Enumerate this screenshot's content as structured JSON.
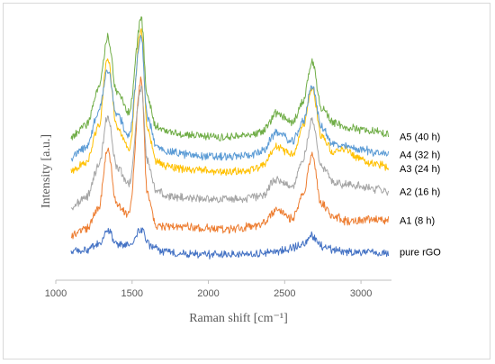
{
  "chart_data": {
    "type": "line",
    "title": "",
    "xlabel": "Raman shift [cm⁻¹]",
    "ylabel": "Intensity [a.u.]",
    "xlim": [
      1000,
      3200
    ],
    "ylim": [
      0,
      1
    ],
    "x_ticks": [
      "1000",
      "1500",
      "2000",
      "2500",
      "3000"
    ],
    "grid": false,
    "legend": "inline-right",
    "series": [
      {
        "name": "pure rGO",
        "color": "#4472c4",
        "points": [
          [
            1100,
            0.056
          ],
          [
            1200,
            0.062
          ],
          [
            1280,
            0.085
          ],
          [
            1340,
            0.14
          ],
          [
            1400,
            0.09
          ],
          [
            1480,
            0.08
          ],
          [
            1560,
            0.145
          ],
          [
            1620,
            0.08
          ],
          [
            1700,
            0.058
          ],
          [
            1800,
            0.05
          ],
          [
            1900,
            0.048
          ],
          [
            2000,
            0.046
          ],
          [
            2100,
            0.046
          ],
          [
            2200,
            0.046
          ],
          [
            2300,
            0.048
          ],
          [
            2400,
            0.056
          ],
          [
            2500,
            0.061
          ],
          [
            2600,
            0.082
          ],
          [
            2680,
            0.12
          ],
          [
            2750,
            0.078
          ],
          [
            2850,
            0.06
          ],
          [
            2950,
            0.056
          ],
          [
            3050,
            0.052
          ],
          [
            3180,
            0.05
          ]
        ]
      },
      {
        "name": "A1 (8 h)",
        "color": "#ed7d31",
        "points": [
          [
            1100,
            0.125
          ],
          [
            1200,
            0.148
          ],
          [
            1280,
            0.23
          ],
          [
            1340,
            0.47
          ],
          [
            1400,
            0.25
          ],
          [
            1480,
            0.21
          ],
          [
            1560,
            0.76
          ],
          [
            1600,
            0.29
          ],
          [
            1660,
            0.16
          ],
          [
            1750,
            0.16
          ],
          [
            1850,
            0.16
          ],
          [
            1950,
            0.15
          ],
          [
            2050,
            0.15
          ],
          [
            2150,
            0.15
          ],
          [
            2250,
            0.156
          ],
          [
            2350,
            0.168
          ],
          [
            2450,
            0.225
          ],
          [
            2550,
            0.19
          ],
          [
            2620,
            0.28
          ],
          [
            2680,
            0.45
          ],
          [
            2740,
            0.25
          ],
          [
            2820,
            0.2
          ],
          [
            2900,
            0.18
          ],
          [
            3000,
            0.186
          ],
          [
            3100,
            0.186
          ],
          [
            3180,
            0.184
          ]
        ]
      },
      {
        "name": "A2 (16 h)",
        "color": "#a5a5a5",
        "points": [
          [
            1100,
            0.232
          ],
          [
            1200,
            0.278
          ],
          [
            1280,
            0.4
          ],
          [
            1340,
            0.6
          ],
          [
            1400,
            0.4
          ],
          [
            1480,
            0.33
          ],
          [
            1560,
            0.72
          ],
          [
            1600,
            0.42
          ],
          [
            1660,
            0.3
          ],
          [
            1750,
            0.28
          ],
          [
            1850,
            0.275
          ],
          [
            1950,
            0.27
          ],
          [
            2050,
            0.27
          ],
          [
            2150,
            0.27
          ],
          [
            2250,
            0.272
          ],
          [
            2350,
            0.284
          ],
          [
            2450,
            0.35
          ],
          [
            2550,
            0.32
          ],
          [
            2620,
            0.43
          ],
          [
            2680,
            0.59
          ],
          [
            2740,
            0.4
          ],
          [
            2820,
            0.34
          ],
          [
            2900,
            0.33
          ],
          [
            3000,
            0.32
          ],
          [
            3100,
            0.31
          ],
          [
            3180,
            0.3
          ]
        ]
      },
      {
        "name": "A3 (24 h)",
        "color": "#ffc000",
        "points": [
          [
            1100,
            0.38
          ],
          [
            1200,
            0.42
          ],
          [
            1280,
            0.56
          ],
          [
            1340,
            0.84
          ],
          [
            1400,
            0.56
          ],
          [
            1480,
            0.47
          ],
          [
            1560,
            0.96
          ],
          [
            1600,
            0.55
          ],
          [
            1660,
            0.42
          ],
          [
            1750,
            0.4
          ],
          [
            1850,
            0.39
          ],
          [
            1950,
            0.385
          ],
          [
            2050,
            0.38
          ],
          [
            2150,
            0.38
          ],
          [
            2250,
            0.385
          ],
          [
            2350,
            0.4
          ],
          [
            2450,
            0.48
          ],
          [
            2550,
            0.45
          ],
          [
            2620,
            0.56
          ],
          [
            2680,
            0.72
          ],
          [
            2740,
            0.53
          ],
          [
            2820,
            0.46
          ],
          [
            2900,
            0.47
          ],
          [
            3000,
            0.43
          ],
          [
            3100,
            0.41
          ],
          [
            3180,
            0.4
          ]
        ]
      },
      {
        "name": "A4 (32 h)",
        "color": "#5b9bd5",
        "points": [
          [
            1100,
            0.44
          ],
          [
            1200,
            0.476
          ],
          [
            1280,
            0.62
          ],
          [
            1340,
            0.79
          ],
          [
            1400,
            0.61
          ],
          [
            1480,
            0.53
          ],
          [
            1560,
            0.92
          ],
          [
            1600,
            0.6
          ],
          [
            1660,
            0.48
          ],
          [
            1750,
            0.46
          ],
          [
            1850,
            0.45
          ],
          [
            1950,
            0.444
          ],
          [
            2050,
            0.44
          ],
          [
            2150,
            0.44
          ],
          [
            2250,
            0.446
          ],
          [
            2350,
            0.46
          ],
          [
            2450,
            0.54
          ],
          [
            2550,
            0.5
          ],
          [
            2620,
            0.58
          ],
          [
            2680,
            0.73
          ],
          [
            2740,
            0.56
          ],
          [
            2820,
            0.49
          ],
          [
            2900,
            0.48
          ],
          [
            3000,
            0.47
          ],
          [
            3100,
            0.458
          ],
          [
            3180,
            0.45
          ]
        ]
      },
      {
        "name": "A5 (40 h)",
        "color": "#70ad47",
        "points": [
          [
            1100,
            0.52
          ],
          [
            1200,
            0.57
          ],
          [
            1280,
            0.72
          ],
          [
            1340,
            0.92
          ],
          [
            1400,
            0.7
          ],
          [
            1480,
            0.62
          ],
          [
            1560,
            1.0
          ],
          [
            1600,
            0.68
          ],
          [
            1660,
            0.56
          ],
          [
            1750,
            0.54
          ],
          [
            1850,
            0.528
          ],
          [
            1950,
            0.524
          ],
          [
            2050,
            0.52
          ],
          [
            2150,
            0.52
          ],
          [
            2250,
            0.526
          ],
          [
            2350,
            0.54
          ],
          [
            2450,
            0.62
          ],
          [
            2550,
            0.58
          ],
          [
            2620,
            0.66
          ],
          [
            2680,
            0.82
          ],
          [
            2740,
            0.64
          ],
          [
            2820,
            0.58
          ],
          [
            2900,
            0.56
          ],
          [
            3000,
            0.55
          ],
          [
            3100,
            0.54
          ],
          [
            3180,
            0.53
          ]
        ]
      }
    ]
  }
}
